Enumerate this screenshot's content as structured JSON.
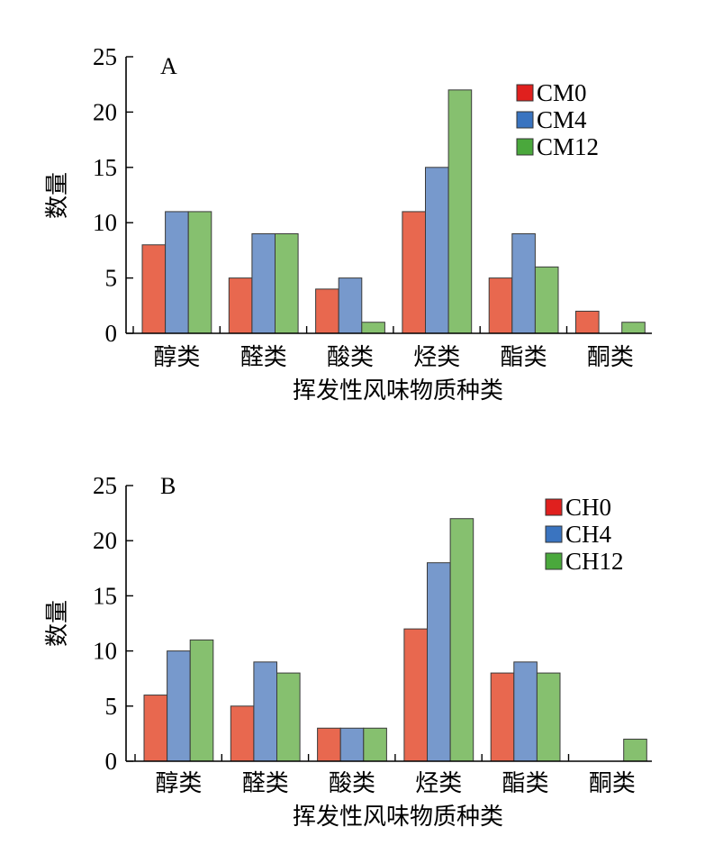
{
  "chart_data": [
    {
      "type": "bar",
      "panel_label": "A",
      "categories": [
        "醇类",
        "醛类",
        "酸类",
        "烃类",
        "酯类",
        "酮类"
      ],
      "series": [
        {
          "name": "CM0",
          "values": [
            8,
            5,
            4,
            11,
            5,
            2
          ],
          "color": "#e8684f",
          "legend_color": "#e0201e"
        },
        {
          "name": "CM4",
          "values": [
            11,
            9,
            5,
            15,
            9,
            0
          ],
          "color": "#7799cc",
          "legend_color": "#3a74c0"
        },
        {
          "name": "CM12",
          "values": [
            11,
            9,
            1,
            22,
            6,
            1
          ],
          "color": "#86c06f",
          "legend_color": "#4aa83c"
        }
      ],
      "xlabel": "挥发性风味物质种类",
      "ylabel": "数量",
      "ylim": [
        0,
        25
      ],
      "yticks": [
        0,
        5,
        10,
        15,
        20,
        25
      ],
      "grid": false,
      "legend": "top-right"
    },
    {
      "type": "bar",
      "panel_label": "B",
      "categories": [
        "醇类",
        "醛类",
        "酸类",
        "烃类",
        "酯类",
        "酮类"
      ],
      "series": [
        {
          "name": "CH0",
          "values": [
            6,
            5,
            3,
            12,
            8,
            0
          ],
          "color": "#e8684f",
          "legend_color": "#e0201e"
        },
        {
          "name": "CH4",
          "values": [
            10,
            9,
            3,
            18,
            9,
            0
          ],
          "color": "#7799cc",
          "legend_color": "#3a74c0"
        },
        {
          "name": "CH12",
          "values": [
            11,
            8,
            3,
            22,
            8,
            2
          ],
          "color": "#86c06f",
          "legend_color": "#4aa83c"
        }
      ],
      "xlabel": "挥发性风味物质种类",
      "ylabel": "数量",
      "ylim": [
        0,
        25
      ],
      "yticks": [
        0,
        5,
        10,
        15,
        20,
        25
      ],
      "grid": false,
      "legend": "top-right"
    }
  ]
}
